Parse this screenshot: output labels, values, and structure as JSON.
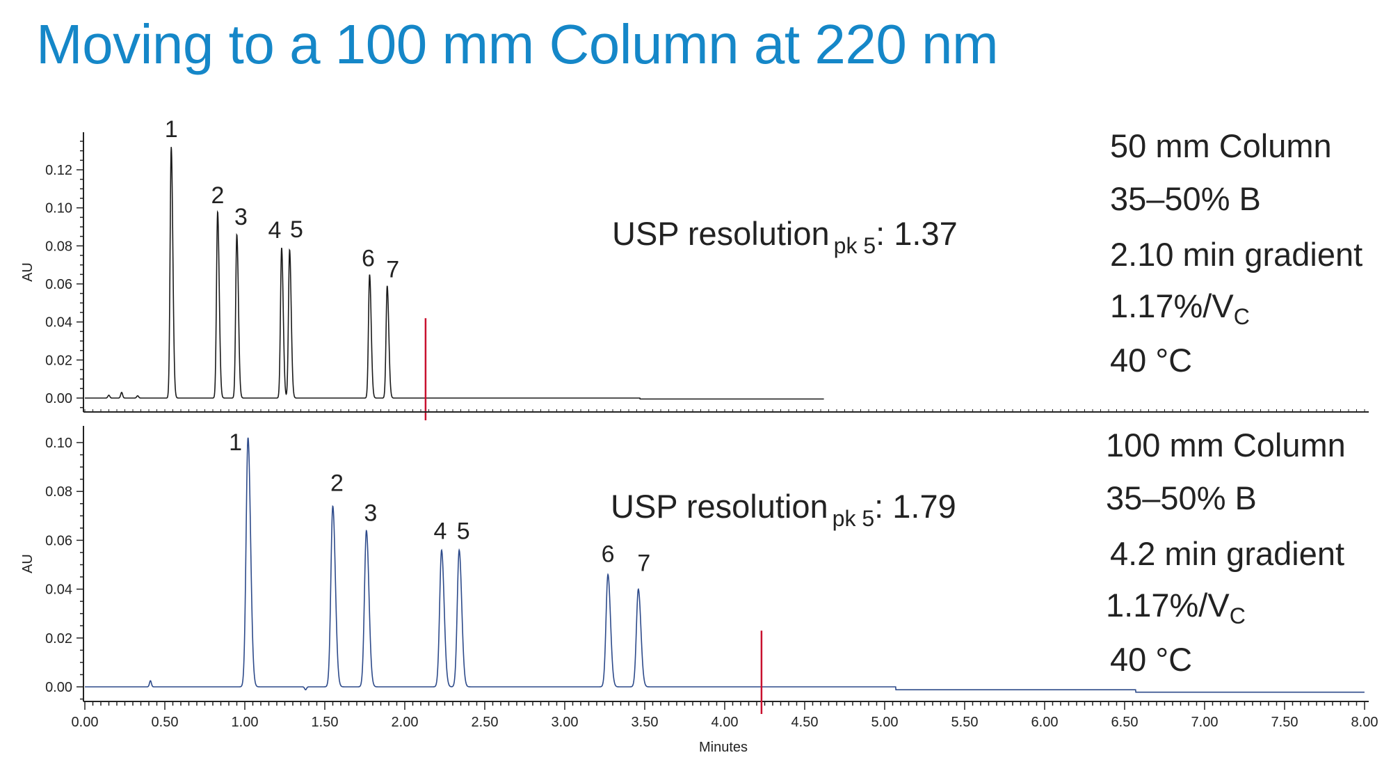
{
  "title": "Moving to a 100 mm Column at 220 nm",
  "colors": {
    "title": "#1587c8",
    "trace_top": "#1a1a1a",
    "trace_bottom": "#2d4a8a",
    "gradient_end_marker": "#c8102e",
    "axis": "#222222"
  },
  "annotations": {
    "top": {
      "usp_main": "USP resolution",
      "usp_sub": "pk 5",
      "usp_value": ": 1.37"
    },
    "bottom": {
      "usp_main": "USP resolution",
      "usp_sub": "pk 5",
      "usp_value": ": 1.79"
    }
  },
  "conditions": {
    "top": {
      "column": "50 mm Column",
      "gradient_range": "35–50% B",
      "gradient_time": "2.10 min gradient",
      "slope_main": "1.17%/V",
      "slope_sub": "C",
      "temperature": "40 °C"
    },
    "bottom": {
      "column": "100 mm Column",
      "gradient_range": "35–50% B",
      "gradient_time": "4.2 min gradient",
      "slope_main": "1.17%/V",
      "slope_sub": "C",
      "temperature": "40 °C"
    }
  },
  "chart_data": [
    {
      "type": "line",
      "panel": "top",
      "title": "",
      "xlabel": "",
      "ylabel": "AU",
      "xlim": [
        0,
        8.0
      ],
      "ylim": [
        -0.008,
        0.135
      ],
      "y_ticks": [
        "0.00",
        "0.02",
        "0.04",
        "0.06",
        "0.08",
        "0.10",
        "0.12"
      ],
      "trace_end_x": 4.62,
      "baseline_y": 0.0,
      "baseline_step": {
        "x": 3.47,
        "dy": -0.0005
      },
      "minor_bumps": [
        {
          "x": 0.15,
          "y": 0.0015
        },
        {
          "x": 0.23,
          "y": 0.003
        },
        {
          "x": 0.33,
          "y": 0.0012
        }
      ],
      "gradient_end_minutes": 2.13,
      "peaks": [
        {
          "label": "1",
          "x": 0.54,
          "y": 0.132
        },
        {
          "label": "2",
          "x": 0.83,
          "y": 0.098
        },
        {
          "label": "3",
          "x": 0.95,
          "y": 0.086
        },
        {
          "label": "4",
          "x": 1.23,
          "y": 0.079
        },
        {
          "label": "5",
          "x": 1.28,
          "y": 0.078
        },
        {
          "label": "6",
          "x": 1.78,
          "y": 0.065
        },
        {
          "label": "7",
          "x": 1.89,
          "y": 0.059
        }
      ]
    },
    {
      "type": "line",
      "panel": "bottom",
      "title": "",
      "xlabel": "Minutes",
      "ylabel": "AU",
      "xlim": [
        0,
        8.0
      ],
      "ylim": [
        -0.007,
        0.104
      ],
      "x_ticks": [
        "0.00",
        "0.50",
        "1.00",
        "1.50",
        "2.00",
        "2.50",
        "3.00",
        "3.50",
        "4.00",
        "4.50",
        "5.00",
        "5.50",
        "6.00",
        "6.50",
        "7.00",
        "7.50",
        "8.00"
      ],
      "y_ticks": [
        "0.00",
        "0.02",
        "0.04",
        "0.06",
        "0.08",
        "0.10"
      ],
      "trace_end_x": 8.0,
      "baseline_y": 0.0,
      "baseline_steps": [
        {
          "x": 5.07,
          "dy": -0.0012
        },
        {
          "x": 6.57,
          "dy": -0.001
        }
      ],
      "minor_bumps": [
        {
          "x": 0.41,
          "y": 0.0025
        },
        {
          "x": 1.38,
          "y": -0.0012
        }
      ],
      "gradient_end_minutes": 4.23,
      "peaks": [
        {
          "label": "1",
          "x": 1.02,
          "y": 0.102
        },
        {
          "label": "2",
          "x": 1.55,
          "y": 0.074
        },
        {
          "label": "3",
          "x": 1.76,
          "y": 0.064
        },
        {
          "label": "4",
          "x": 2.23,
          "y": 0.056
        },
        {
          "label": "5",
          "x": 2.34,
          "y": 0.056
        },
        {
          "label": "6",
          "x": 3.27,
          "y": 0.046
        },
        {
          "label": "7",
          "x": 3.46,
          "y": 0.04
        }
      ]
    }
  ]
}
